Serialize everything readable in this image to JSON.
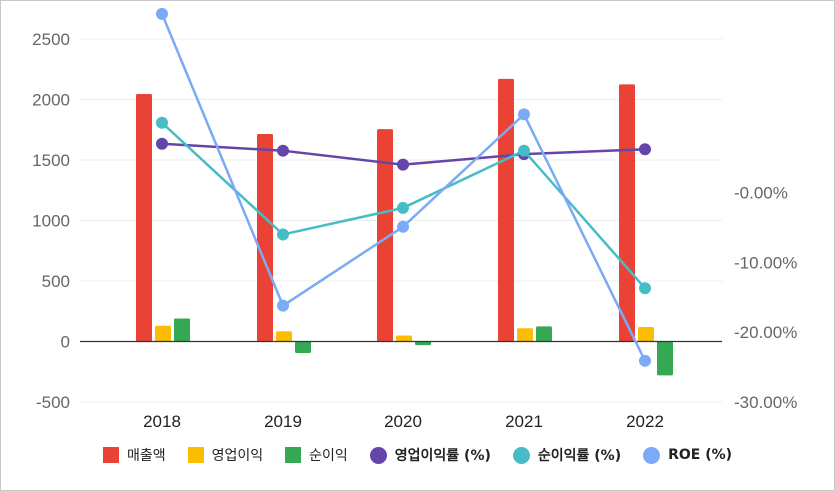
{
  "chart_data": {
    "type": "bar",
    "categories": [
      "2018",
      "2019",
      "2020",
      "2021",
      "2022"
    ],
    "left_axis": {
      "ticks": [
        "2500",
        "2000",
        "1500",
        "1000",
        "500",
        "0",
        "-500"
      ],
      "ylim": [
        -500,
        2500
      ]
    },
    "right_axis": {
      "ticks": [
        "-0.00%",
        "-10.00%",
        "-20.00%",
        "-30.00%"
      ],
      "ylim": [
        -30,
        22
      ]
    },
    "series": [
      {
        "name": "매출액",
        "kind": "bar",
        "axis": "left",
        "color": "#ea4335",
        "values": [
          2045,
          1715,
          1755,
          2170,
          2125
        ]
      },
      {
        "name": "영업이익",
        "kind": "bar",
        "axis": "left",
        "color": "#fbbc04",
        "values": [
          130,
          85,
          50,
          110,
          120
        ]
      },
      {
        "name": "순이익",
        "kind": "bar",
        "axis": "left",
        "color": "#34a853",
        "values": [
          190,
          -95,
          -30,
          125,
          -280
        ]
      },
      {
        "name": "영업이익률 (%)",
        "kind": "line",
        "axis": "right",
        "color": "#6446a8",
        "values": [
          7.0,
          6.0,
          4.0,
          5.5,
          6.2
        ]
      },
      {
        "name": "순이익률 (%)",
        "kind": "line",
        "axis": "right",
        "color": "#46bdc6",
        "values": [
          10.0,
          -6.0,
          -2.2,
          6.0,
          -13.7
        ]
      },
      {
        "name": "ROE (%)",
        "kind": "line",
        "axis": "right",
        "color": "#7baaf7",
        "values": [
          25.6,
          -16.2,
          -4.9,
          11.2,
          -24.1
        ]
      }
    ],
    "grid": true,
    "legend_position": "bottom"
  }
}
